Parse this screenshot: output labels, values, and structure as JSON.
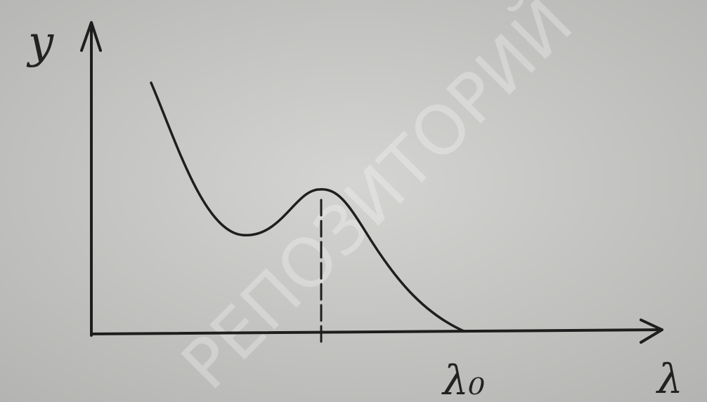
{
  "labels": {
    "y_axis": "y",
    "x_axis": "λ",
    "x_mark": "λ₀"
  },
  "watermark": "РЕПОЗИТОРИЙ"
}
